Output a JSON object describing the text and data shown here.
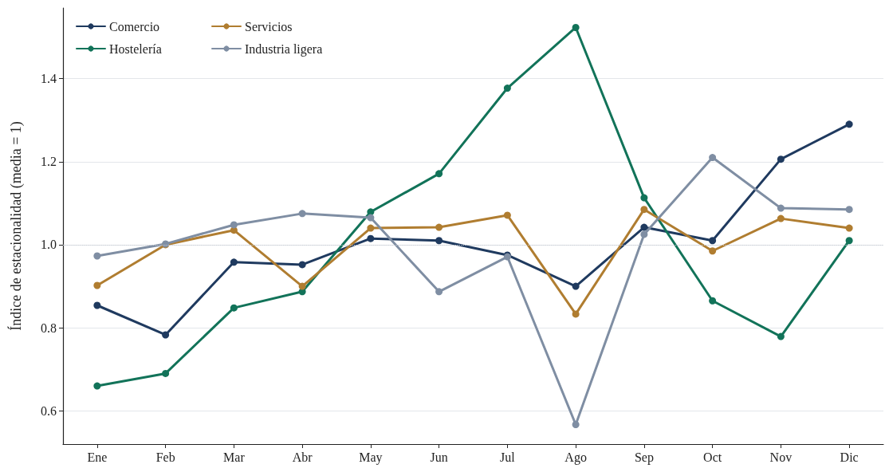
{
  "chart_data": {
    "type": "line",
    "ylabel": "Índice de estacionalidad (media = 1)",
    "categories": [
      "Ene",
      "Feb",
      "Mar",
      "Abr",
      "May",
      "Jun",
      "Jul",
      "Ago",
      "Sep",
      "Oct",
      "Nov",
      "Dic"
    ],
    "series": [
      {
        "name": "Comercio",
        "color": "#1f3a5f",
        "values": [
          0.854,
          0.783,
          0.958,
          0.952,
          1.015,
          1.01,
          0.975,
          0.9,
          1.042,
          1.01,
          1.206,
          1.29
        ]
      },
      {
        "name": "Hostelería",
        "color": "#127359",
        "values": [
          0.66,
          0.69,
          0.848,
          0.887,
          1.079,
          1.171,
          1.377,
          1.523,
          1.113,
          0.865,
          0.779,
          1.01
        ]
      },
      {
        "name": "Servicios",
        "color": "#b07d30",
        "values": [
          0.902,
          1.0,
          1.035,
          0.9,
          1.04,
          1.042,
          1.071,
          0.833,
          1.085,
          0.985,
          1.063,
          1.04
        ]
      },
      {
        "name": "Industria ligera",
        "color": "#7f8ea3",
        "values": [
          0.973,
          1.002,
          1.048,
          1.075,
          1.065,
          0.887,
          0.971,
          0.567,
          1.025,
          1.21,
          1.088,
          1.085
        ]
      }
    ],
    "ylim": [
      0.52,
      1.57
    ],
    "yticks": [
      0.6,
      0.8,
      {
        "value": 1.0,
        "label": "1.0"
      },
      1.2,
      1.4
    ],
    "ref_lines": [
      {
        "axis": "y",
        "value": 1.0,
        "label": null,
        "color": "#c8ccd4",
        "line_style": "dotted"
      }
    ],
    "grid": "y",
    "legend": "top left",
    "marker": "circle",
    "line_style": "solid"
  }
}
